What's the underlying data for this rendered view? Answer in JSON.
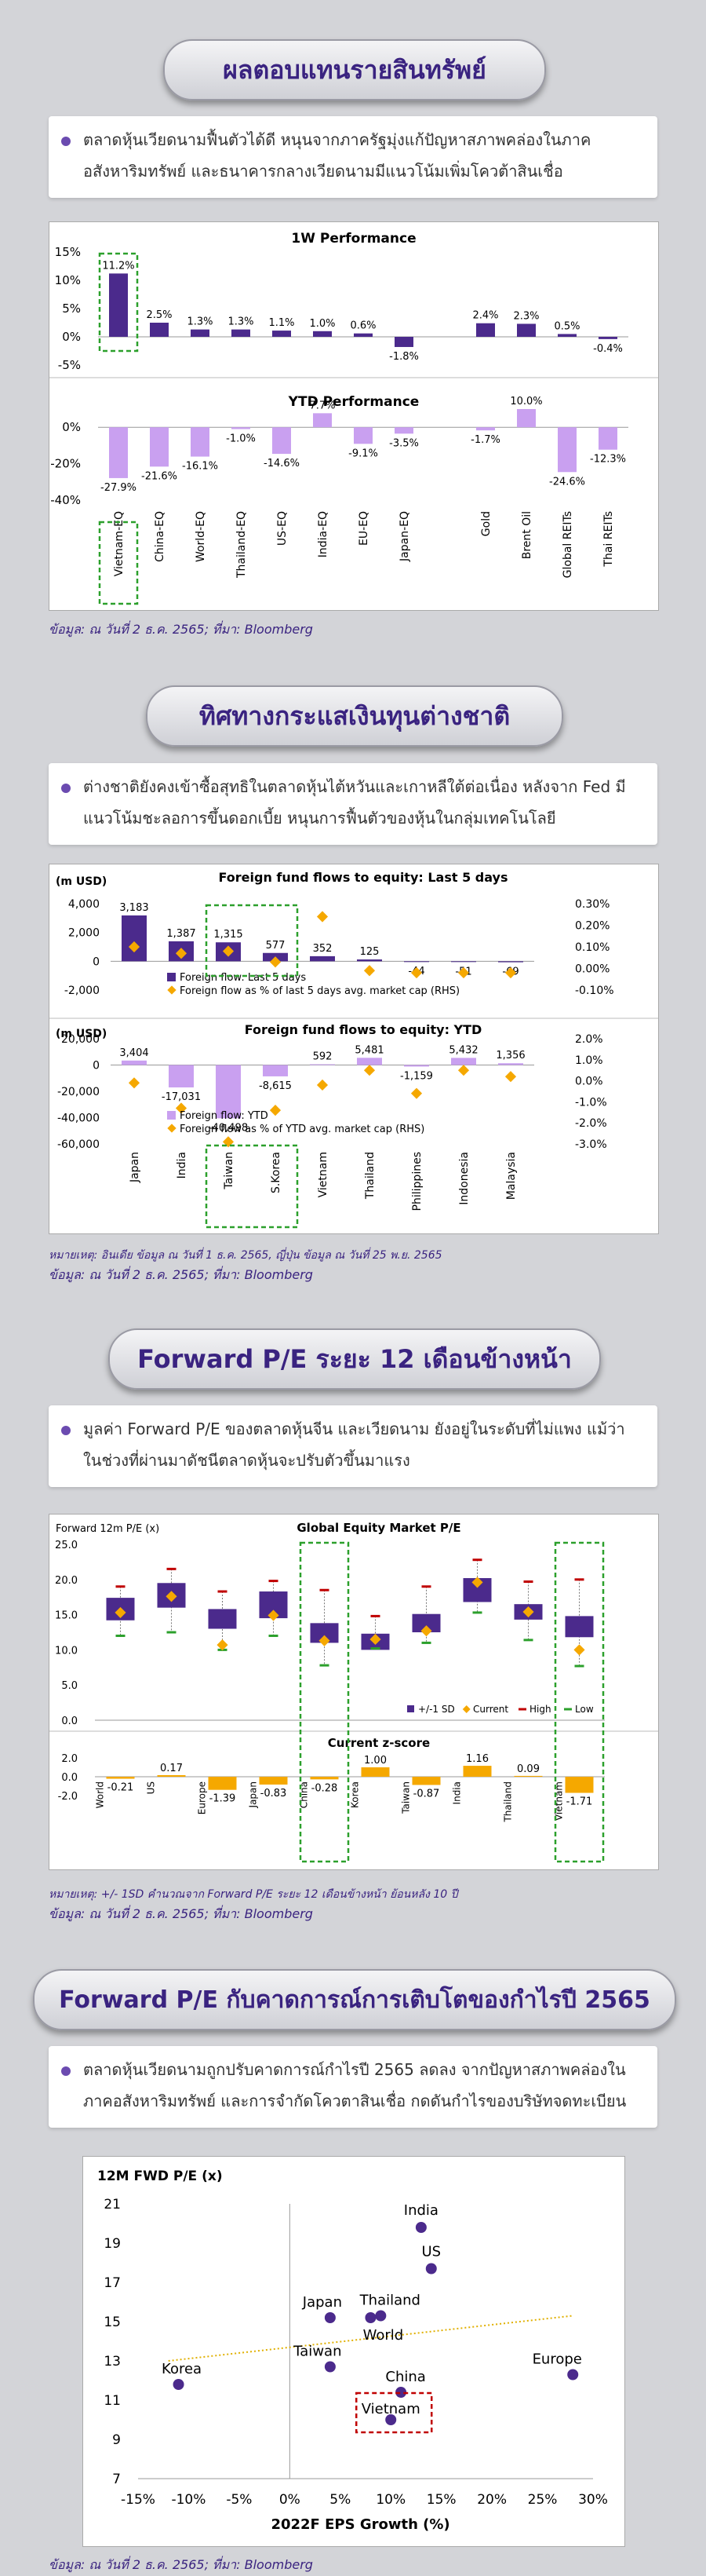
{
  "sections": [
    {
      "title": "ผลตอบแทนรายสินทรัพย์",
      "bullet": "ตลาดหุ้นเวียดนามฟื้นตัวได้ดี หนุนจากภาครัฐมุ่งแก้ปัญหาสภาพคล่องในภาคอสังหาริมทรัพย์ และธนาคารกลางเวียดนามมีแนวโน้มเพิ่มโควต้าสินเชื่อ",
      "source": "ข้อมูล: ณ วันที่ 2 ธ.ค. 2565; ที่มา: Bloomberg"
    },
    {
      "title": "ทิศทางกระแสเงินทุนต่างชาติ",
      "bullet": "ต่างชาติยังคงเข้าซื้อสุทธิในตลาดหุ้นไต้หวันและเกาหลีใต้ต่อเนื่อง หลังจาก Fed มีแนวโน้มชะลอการขึ้นดอกเบี้ย หนุนการฟื้นตัวของหุ้นในกลุ่มเทคโนโลยี",
      "note": "หมายเหตุ: อินเดีย ข้อมูล ณ วันที่ 1 ธ.ค. 2565, ญี่ปุ่น ข้อมูล ณ วันที่ 25 พ.ย. 2565",
      "source": "ข้อมูล: ณ วันที่ 2 ธ.ค. 2565; ที่มา: Bloomberg"
    },
    {
      "title": "Forward P/E ระยะ 12 เดือนข้างหน้า",
      "bullet": "มูลค่า Forward P/E ของตลาดหุ้นจีน และเวียดนาม ยังอยู่ในระดับที่ไม่แพง แม้ว่าในช่วงที่ผ่านมาดัชนีตลาดหุ้นจะปรับตัวขึ้นมาแรง",
      "note": "หมายเหตุ: +/- 1SD คำนวณจาก Forward P/E ระยะ 12 เดือนข้างหน้า ย้อนหลัง 10 ปี",
      "source": "ข้อมูล: ณ วันที่ 2 ธ.ค. 2565; ที่มา: Bloomberg"
    },
    {
      "title": "Forward P/E กับคาดการณ์การเติบโตของกำไรปี 2565",
      "bullet": "ตลาดหุ้นเวียดนามถูกปรับคาดการณ์กำไรปี 2565 ลดลง จากปัญหาสภาพคล่องในภาคอสังหาริมทรัพย์ และการจำกัดโควตาสินเชื่อ กดดันกำไรของบริษัทจดทะเบียน",
      "source": "ข้อมูล: ณ วันที่ 2 ธ.ค. 2565; ที่มา: Bloomberg"
    }
  ],
  "colors": {
    "purple": "#4b2a8c",
    "light_purple": "#c9a0f0",
    "orange": "#f5a800",
    "highlight_green": "#2ca02c",
    "red": "#c00000"
  },
  "chart_data": [
    {
      "type": "bar",
      "title": "1W Performance",
      "categories": [
        "Vietnam-EQ",
        "China-EQ",
        "World-EQ",
        "Thailand-EQ",
        "US-EQ",
        "India-EQ",
        "EU-EQ",
        "Japan-EQ",
        "",
        "Gold",
        "Brent Oil",
        "Global REITs",
        "Thai REITs"
      ],
      "values": [
        11.2,
        2.5,
        1.3,
        1.3,
        1.1,
        1.0,
        0.6,
        -1.8,
        null,
        2.4,
        2.3,
        0.5,
        -0.4
      ],
      "value_labels": [
        "11.2%",
        "2.5%",
        "1.3%",
        "1.3%",
        "1.1%",
        "1.0%",
        "0.6%",
        "-1.8%",
        "",
        "2.4%",
        "2.3%",
        "0.5%",
        "-0.4%"
      ],
      "yticks": [
        "15%",
        "10%",
        "5%",
        "0%",
        "-5%"
      ],
      "ylim": [
        -5,
        15
      ],
      "highlight": "Vietnam-EQ"
    },
    {
      "type": "bar",
      "title": "YTD Performance",
      "categories": [
        "Vietnam-EQ",
        "China-EQ",
        "World-EQ",
        "Thailand-EQ",
        "US-EQ",
        "India-EQ",
        "EU-EQ",
        "Japan-EQ",
        "",
        "Gold",
        "Brent Oil",
        "Global REITs",
        "Thai REITs"
      ],
      "values": [
        -27.9,
        -21.6,
        -16.1,
        -1.0,
        -14.6,
        7.7,
        -9.1,
        -3.5,
        null,
        -1.7,
        10.0,
        -24.6,
        -12.3
      ],
      "value_labels": [
        "-27.9%",
        "-21.6%",
        "-16.1%",
        "-1.0%",
        "-14.6%",
        "7.7%",
        "-9.1%",
        "-3.5%",
        "",
        "-1.7%",
        "10.0%",
        "-24.6%",
        "-12.3%"
      ],
      "yticks": [
        "0%",
        "-20%",
        "-40%"
      ],
      "ylim": [
        -40,
        10
      ],
      "highlight": "Vietnam-EQ"
    },
    {
      "type": "bar",
      "title": "Foreign fund flows to equity: Last 5 days",
      "ylabel": "(m USD)",
      "categories": [
        "Japan",
        "India",
        "Taiwan",
        "S.Korea",
        "Vietnam",
        "Thailand",
        "Philippines",
        "Indonesia",
        "Malaysia"
      ],
      "series": [
        {
          "name": "Foreign flow: Last 5 days",
          "values": [
            3183,
            1387,
            1315,
            577,
            352,
            125,
            -44,
            -51,
            -69
          ]
        },
        {
          "name": "Foreign flow as % of last 5 days avg. market cap (RHS)",
          "values": [
            0.1,
            0.07,
            0.08,
            0.03,
            0.24,
            -0.01,
            -0.02,
            -0.02,
            -0.02
          ]
        }
      ],
      "value_labels": [
        "3,183",
        "1,387",
        "1,315",
        "577",
        "352",
        "125",
        "-44",
        "-51",
        "-69"
      ],
      "yticks": [
        "4,000",
        "2,000",
        "0",
        "-2,000"
      ],
      "y2ticks": [
        "0.30%",
        "0.20%",
        "0.10%",
        "0.00%",
        "-0.10%"
      ],
      "ylim": [
        -2000,
        4000
      ],
      "y2lim": [
        -0.1,
        0.3
      ],
      "highlight": [
        "Taiwan",
        "S.Korea"
      ]
    },
    {
      "type": "bar",
      "title": "Foreign fund flows to equity: YTD",
      "ylabel": "(m USD)",
      "categories": [
        "Japan",
        "India",
        "Taiwan",
        "S.Korea",
        "Vietnam",
        "Thailand",
        "Philippines",
        "Indonesia",
        "Malaysia"
      ],
      "series": [
        {
          "name": "Foreign flow: YTD",
          "values": [
            3404,
            -17031,
            -40498,
            -8615,
            592,
            5481,
            -1159,
            5432,
            1356
          ]
        },
        {
          "name": "Foreign flow as % of YTD avg. market cap (RHS)",
          "values": [
            -0.1,
            -1.3,
            -2.9,
            -1.4,
            -0.2,
            0.5,
            -0.6,
            0.5,
            0.2
          ]
        }
      ],
      "value_labels": [
        "3,404",
        "-17,031",
        "-40,498",
        "-8,615",
        "592",
        "5,481",
        "-1,159",
        "5,432",
        "1,356"
      ],
      "yticks": [
        "20,000",
        "0",
        "-20,000",
        "-40,000",
        "-60,000"
      ],
      "y2ticks": [
        "2.0%",
        "1.0%",
        "0.0%",
        "-1.0%",
        "-2.0%",
        "-3.0%"
      ],
      "ylim": [
        -60000,
        20000
      ],
      "y2lim": [
        -3,
        2
      ],
      "highlight": [
        "Taiwan",
        "S.Korea"
      ]
    },
    {
      "type": "bar",
      "title": "Global Equity Market P/E",
      "ylabel": "Forward 12m P/E (x)",
      "categories": [
        "World",
        "US",
        "Europe",
        "Japan",
        "China",
        "Korea",
        "Taiwan",
        "India",
        "Thailand",
        "Vietnam"
      ],
      "plus_minus_1sd": [
        [
          14.2,
          17.4
        ],
        [
          16.0,
          19.5
        ],
        [
          13.0,
          15.8
        ],
        [
          14.5,
          18.3
        ],
        [
          11.0,
          13.8
        ],
        [
          10.0,
          12.3
        ],
        [
          12.5,
          15.1
        ],
        [
          16.8,
          20.2
        ],
        [
          14.3,
          16.5
        ],
        [
          11.8,
          14.8
        ]
      ],
      "current": [
        15.3,
        17.6,
        10.7,
        14.9,
        11.3,
        11.5,
        12.7,
        19.6,
        15.4,
        10.0
      ],
      "high": [
        19.0,
        21.5,
        18.3,
        19.8,
        18.5,
        14.8,
        19.0,
        22.8,
        19.7,
        20.0
      ],
      "low": [
        12.0,
        12.5,
        10.0,
        12.0,
        7.8,
        10.2,
        11.0,
        15.3,
        11.4,
        7.7
      ],
      "legend": [
        "+/-1 SD",
        "Current",
        "High",
        "Low"
      ],
      "yticks": [
        "25.0",
        "20.0",
        "15.0",
        "10.0",
        "5.0",
        "0.0"
      ],
      "ylim": [
        0,
        25
      ],
      "highlight": [
        "China",
        "Vietnam"
      ]
    },
    {
      "type": "bar",
      "title": "Current z-score",
      "categories": [
        "World",
        "US",
        "Europe",
        "Japan",
        "China",
        "Korea",
        "Taiwan",
        "India",
        "Thailand",
        "Vietnam"
      ],
      "values": [
        -0.21,
        0.17,
        -1.39,
        -0.83,
        -0.28,
        1.0,
        -0.87,
        1.16,
        0.09,
        -1.71
      ],
      "value_labels": [
        "-0.21",
        "0.17",
        "-1.39",
        "-0.83",
        "-0.28",
        "1.00",
        "-0.87",
        "1.16",
        "0.09",
        "-1.71"
      ],
      "yticks": [
        "2.0",
        "0.0",
        "-2.0"
      ],
      "ylim": [
        -2,
        2
      ],
      "highlight": [
        "China",
        "Vietnam"
      ]
    },
    {
      "type": "scatter",
      "ylabel": "12M FWD P/E (x)",
      "xlabel": "2022F EPS Growth (%)",
      "points": [
        {
          "label": "India",
          "x": 13,
          "y": 19.8
        },
        {
          "label": "US",
          "x": 14,
          "y": 17.7
        },
        {
          "label": "Japan",
          "x": 4,
          "y": 15.2
        },
        {
          "label": "Thailand",
          "x": 9,
          "y": 15.3
        },
        {
          "label": "World",
          "x": 8,
          "y": 15.2
        },
        {
          "label": "Taiwan",
          "x": 4,
          "y": 12.7
        },
        {
          "label": "Korea",
          "x": -11,
          "y": 11.8
        },
        {
          "label": "China",
          "x": 11,
          "y": 11.4
        },
        {
          "label": "Europe",
          "x": 28,
          "y": 12.3
        },
        {
          "label": "Vietnam",
          "x": 10,
          "y": 10.0
        }
      ],
      "trendline": [
        [
          -12,
          13.0
        ],
        [
          28,
          15.3
        ]
      ],
      "xticks": [
        "-15%",
        "-10%",
        "-5%",
        "0%",
        "5%",
        "10%",
        "15%",
        "20%",
        "25%",
        "30%"
      ],
      "yticks": [
        "21",
        "19",
        "17",
        "15",
        "13",
        "11",
        "9",
        "7"
      ],
      "xlim": [
        -15,
        30
      ],
      "ylim": [
        7,
        21
      ],
      "highlight": "Vietnam"
    }
  ]
}
